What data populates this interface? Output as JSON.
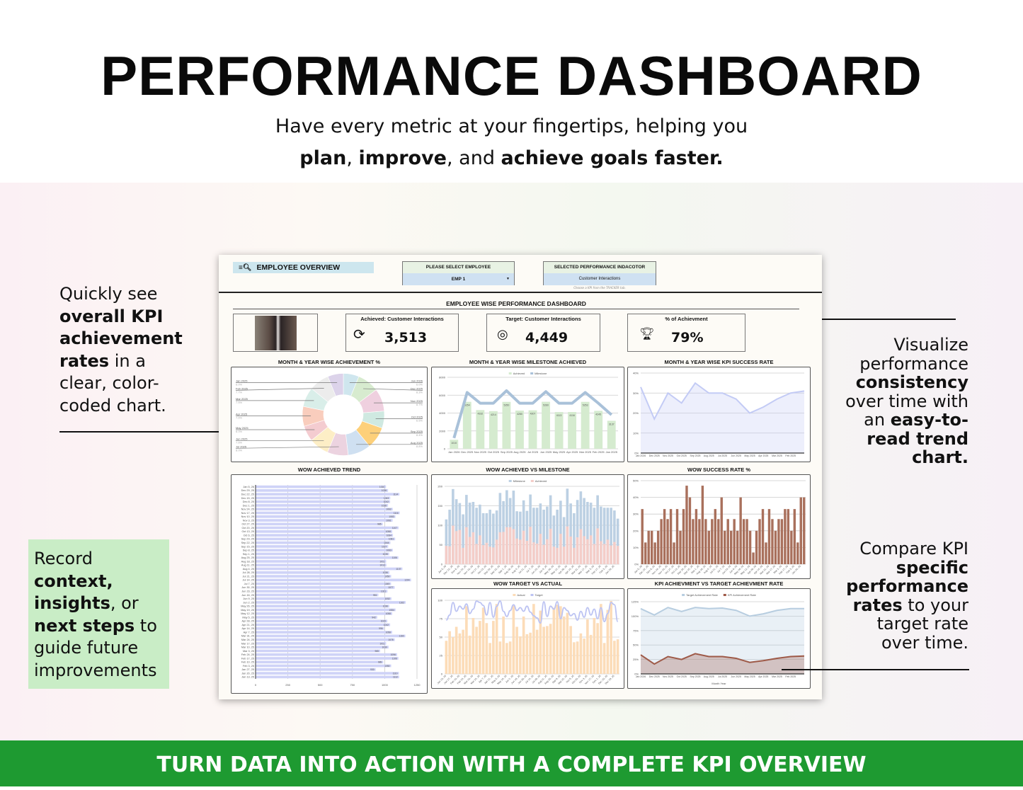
{
  "hero": {
    "title": "PERFORMANCE DASHBOARD",
    "subtitle_line1": "Have every metric at your fingertips, helping you",
    "subtitle_parts": [
      "plan",
      ", ",
      "improve",
      ", and ",
      "achieve goals faster."
    ]
  },
  "annotations": {
    "left": [
      "Quickly see ",
      "overall KPI achievement rates",
      " in a clear, color-coded chart."
    ],
    "green": [
      "Record ",
      "context, insights",
      ", or ",
      "next steps",
      " to guide future improvements"
    ],
    "right_top": [
      "Visualize performance ",
      "consistency",
      " over time with an ",
      "easy-to-read trend chart."
    ],
    "right_bottom": [
      "Compare KPI ",
      "specific performance rates",
      " to your target rate over time."
    ]
  },
  "footer": {
    "text": "TURN DATA INTO ACTION WITH A COMPLETE KPI OVERVIEW",
    "color": "#1e9a31"
  },
  "dashboard": {
    "overview_label": "EMPLOYEE OVERVIEW",
    "select_employee": {
      "label": "PLEASE SELECT EMPLOYEE",
      "value": "EMP 1"
    },
    "indicator": {
      "label": "SELECTED PERFORMANCE INDACOTOR",
      "value": "Customer Interactions",
      "hint": "Choose a KPI from the TRACKER tab."
    },
    "title": "EMPLOYEE WISE PERFORMANCE DASHBOARD",
    "cards": [
      {
        "label": "Achieved: Customer Interactions",
        "value": "3,513",
        "icon": "refresh-check-icon"
      },
      {
        "label": "Target: Customer Interactions",
        "value": "4,449",
        "icon": "target-arrow-icon"
      },
      {
        "label": "% of Achievment",
        "value": "79%",
        "icon": "trophy-percent-icon"
      }
    ]
  },
  "chart_data": [
    {
      "id": "donut",
      "type": "pie",
      "title": "MONTH & YEAR WISE ACHIEVEMENT %",
      "labels": [
        "Jan 2026",
        "Dec 2025",
        "Nov 2025",
        "Oct 2025",
        "Sep 2025",
        "Aug 2025",
        "Jul 2025",
        "Jun 2025",
        "May 2025",
        "Apr 2025",
        "Mar 2025",
        "Feb 2025",
        "Jan 2025"
      ],
      "values": [
        6.0,
        8.3,
        8.7,
        6.5,
        8.4,
        8.8,
        8.0,
        7.6,
        6.0,
        7.6,
        7.5,
        7.7,
        6.0
      ],
      "colors": [
        "#cfe6ee",
        "#d7ebcf",
        "#efd0df",
        "#cfe9e1",
        "#fdd07a",
        "#cfe0f1",
        "#ecd3e0",
        "#fdeec6",
        "#f4ccd0",
        "#f9cdbd",
        "#d9eee9",
        "#ececec",
        "#dcd3ea"
      ]
    },
    {
      "id": "milestone",
      "type": "bar",
      "title": "MONTH & YEAR WISE MILESTONE ACHIEVED",
      "categories": [
        "Jan 2026",
        "Dec 2025",
        "Nov 2025",
        "Oct 2025",
        "Sep 2025",
        "Aug 2025",
        "Jul 2025",
        "Jun 2025",
        "May 2025",
        "Apr 2025",
        "Mar 2025",
        "Feb 2025",
        "Jan 2025"
      ],
      "series": [
        {
          "name": "Achieved",
          "type": "bar",
          "color": "#d5ebcf",
          "values": [
            1010,
            5254,
            4332,
            4214,
            5250,
            4280,
            4307,
            5260,
            4113,
            4116,
            5253,
            4245,
            3137
          ]
        },
        {
          "name": "Milestone",
          "type": "line",
          "color": "#a9c1d9",
          "values": [
            1200,
            6300,
            5100,
            5100,
            6500,
            5100,
            5100,
            6400,
            5100,
            5100,
            6300,
            5100,
            3800
          ]
        }
      ],
      "ylim": [
        0,
        8000
      ],
      "yticks": [
        0,
        2000,
        4000,
        6000,
        8000
      ]
    },
    {
      "id": "kpi-success",
      "type": "area",
      "title": "MONTH & YEAR WISE KPI SUCCESS RATE",
      "categories": [
        "Jan 2026",
        "Dec 2025",
        "Nov 2025",
        "Oct 2025",
        "Sep 2025",
        "Aug 2025",
        "Jul 2025",
        "Jun 2025",
        "May 2025",
        "Apr 2025",
        "Mar 2025",
        "Feb 2025",
        ""
      ],
      "values": [
        33,
        17,
        30,
        25,
        35,
        30,
        30,
        27,
        20,
        23,
        27,
        30,
        31
      ],
      "ylim": [
        0,
        40
      ],
      "yticks": [
        "0%",
        "10%",
        "20%",
        "30%",
        "40%"
      ],
      "color": "#c3cbf5"
    },
    {
      "id": "wow-trend",
      "type": "bar",
      "orientation": "horizontal",
      "title": "WOW ACHIEVED TREND",
      "categories": [
        "Jan 5, 26",
        "Dec 29, 25",
        "Dec 22, 25",
        "Dec 15, 25",
        "Dec 8, 25",
        "Dec 1, 25",
        "Nov 24, 25",
        "Nov 17, 25",
        "Nov 10, 25",
        "Nov 3, 25",
        "Oct 27, 25",
        "Oct 20, 25",
        "Oct 13, 25",
        "Oct 6, 25",
        "Sep 29, 25",
        "Sep 22, 25",
        "Sep 15, 25",
        "Sep 8, 25",
        "Sep 1, 25",
        "Aug 25, 25",
        "Aug 18, 25",
        "Aug 11, 25",
        "Aug 4, 25",
        "Jul 28, 25",
        "Jul 21, 25",
        "Jul 14, 25",
        "Jul 7, 25",
        "Jun 30, 25",
        "Jun 23, 25",
        "Jun 16, 25",
        "Jun 9, 25",
        "Jun 2, 25",
        "May 26, 25",
        "May 19, 25",
        "May 12, 25",
        "May 5, 25",
        "Apr 28, 25",
        "Apr 21, 25",
        "Apr 14, 25",
        "Apr 7, 25",
        "Mar 31, 25",
        "Mar 24, 25",
        "Mar 17, 25",
        "Mar 10, 25",
        "Mar 3, 25",
        "Feb 24, 25",
        "Feb 17, 25",
        "Feb 10, 25",
        "Feb 3, 25",
        "Jan 27, 25",
        "Jan 20, 25",
        "Jan 13, 25"
      ],
      "values": [
        1010,
        1026,
        1114,
        1043,
        1042,
        1026,
        1062,
        1116,
        1083,
        1061,
        985,
        1107,
        1058,
        1064,
        1081,
        1044,
        1027,
        1063,
        1035,
        1106,
        1011,
        1013,
        1137,
        1036,
        1050,
        1204,
        1049,
        1077,
        1021,
        951,
        1052,
        1162,
        1036,
        1084,
        1058,
        942,
        1020,
        1042,
        996,
        1058,
        1160,
        1078,
        1011,
        1030,
        965,
        1096,
        1106,
        989,
        1050,
        930,
        1110,
        1112
      ],
      "xlim": [
        0,
        1250
      ],
      "xticks": [
        0,
        250,
        500,
        750,
        1000,
        1250
      ],
      "color": "#cfd3f7"
    },
    {
      "id": "wow-milestone",
      "type": "bar",
      "title": "WOW ACHIEVED VS MILESTONE",
      "series": [
        {
          "name": "Milestone",
          "color": "#bcd0e3",
          "values": [
            115,
            140,
            193,
            167,
            157,
            128,
            178,
            158,
            160,
            145,
            153,
            131,
            131,
            140,
            130,
            138,
            183,
            162,
            190,
            170,
            189,
            136,
            135,
            164,
            137,
            179,
            145,
            145,
            156,
            140,
            148,
            177,
            125,
            140,
            163,
            121,
            194,
            156,
            131,
            165,
            187,
            170,
            160,
            158,
            145,
            177,
            148,
            145,
            145,
            145,
            138,
            117
          ]
        },
        {
          "name": "Achieved",
          "color": "#f4cdc8",
          "values": [
            47,
            46,
            99,
            85,
            88,
            42,
            95,
            70,
            82,
            52,
            74,
            49,
            55,
            45,
            43,
            63,
            82,
            83,
            95,
            95,
            90,
            66,
            63,
            86,
            60,
            96,
            56,
            53,
            78,
            50,
            64,
            91,
            45,
            42,
            78,
            45,
            97,
            71,
            42,
            69,
            90,
            72,
            64,
            74,
            52,
            92,
            59,
            52,
            63,
            48,
            57,
            47
          ]
        }
      ],
      "ylim": [
        0,
        200
      ],
      "yticks": [
        0,
        50,
        100,
        150,
        200
      ]
    },
    {
      "id": "wow-success",
      "type": "bar",
      "title": "WOW SUCCESS RATE %",
      "values": [
        33,
        13,
        20,
        20,
        13,
        20,
        27,
        33,
        27,
        33,
        13,
        33,
        20,
        33,
        47,
        40,
        27,
        33,
        27,
        47,
        27,
        20,
        27,
        33,
        27,
        40,
        20,
        27,
        20,
        27,
        20,
        40,
        27,
        27,
        20,
        7,
        20,
        27,
        33,
        13,
        33,
        27,
        20,
        27,
        27,
        33,
        33,
        20,
        33,
        13,
        40,
        40
      ],
      "ylim": [
        0,
        50
      ],
      "yticks": [
        "0%",
        "10%",
        "20%",
        "30%",
        "40%",
        "50%"
      ],
      "color": "#a9705c"
    },
    {
      "id": "wow-target",
      "type": "bar",
      "title": "WOW TARGET VS ACTUAL",
      "series": [
        {
          "name": "Actual",
          "type": "bar",
          "color": "#fcdcb8",
          "values": [
            45,
            58,
            50,
            64,
            55,
            60,
            92,
            52,
            76,
            64,
            72,
            90,
            69,
            42,
            72,
            95,
            44,
            78,
            42,
            44,
            93,
            64,
            51,
            78,
            54,
            56,
            95,
            60,
            86,
            64,
            65,
            68,
            90,
            94,
            92,
            78,
            83,
            65,
            43,
            44,
            55,
            48,
            74,
            53,
            76,
            69,
            95,
            42,
            87,
            99,
            45,
            47
          ]
        },
        {
          "name": "Target",
          "type": "line",
          "color": "#bcc3f2",
          "values": [
            73,
            80,
            97,
            85,
            92,
            88,
            95,
            82,
            88,
            99,
            97,
            93,
            80,
            97,
            77,
            92,
            99,
            85,
            78,
            86,
            94,
            86,
            90,
            85,
            92,
            84,
            79,
            76,
            69,
            98,
            78,
            92,
            88,
            98,
            75,
            90,
            86,
            79,
            82,
            73,
            85,
            77,
            90,
            80,
            88,
            75,
            90,
            71,
            82,
            97,
            94,
            71
          ]
        }
      ],
      "ylim": [
        0,
        100
      ],
      "yticks": [
        0,
        25,
        50,
        75,
        100
      ]
    },
    {
      "id": "kpi-vs-target",
      "type": "area",
      "title": "KPI ACHIEVMENT VS TARGET ACHIEVMENT RATE",
      "xlabel": "Month Year",
      "categories": [
        "Jan 2026",
        "Dec 2025",
        "Nov 2025",
        "Oct 2025",
        "Sep 2025",
        "Aug 2025",
        "Jul 2025",
        "Jun 2025",
        "May 2025",
        "Apr 2025",
        "Mar 2025",
        "Feb 2025",
        ""
      ],
      "series": [
        {
          "name": "Target Achievement Rate",
          "color": "#b7cde0",
          "values": [
            113,
            102,
            115,
            108,
            115,
            113,
            114,
            110,
            100,
            104,
            110,
            113,
            113
          ]
        },
        {
          "name": "KPI Achievement Rate",
          "color": "#9e5a48",
          "values": [
            33,
            17,
            30,
            25,
            35,
            30,
            30,
            27,
            20,
            23,
            27,
            30,
            31
          ]
        }
      ],
      "ylim": [
        0,
        125
      ],
      "yticks": [
        "0%",
        "25%",
        "50%",
        "75%",
        "100%",
        "125%"
      ]
    }
  ]
}
